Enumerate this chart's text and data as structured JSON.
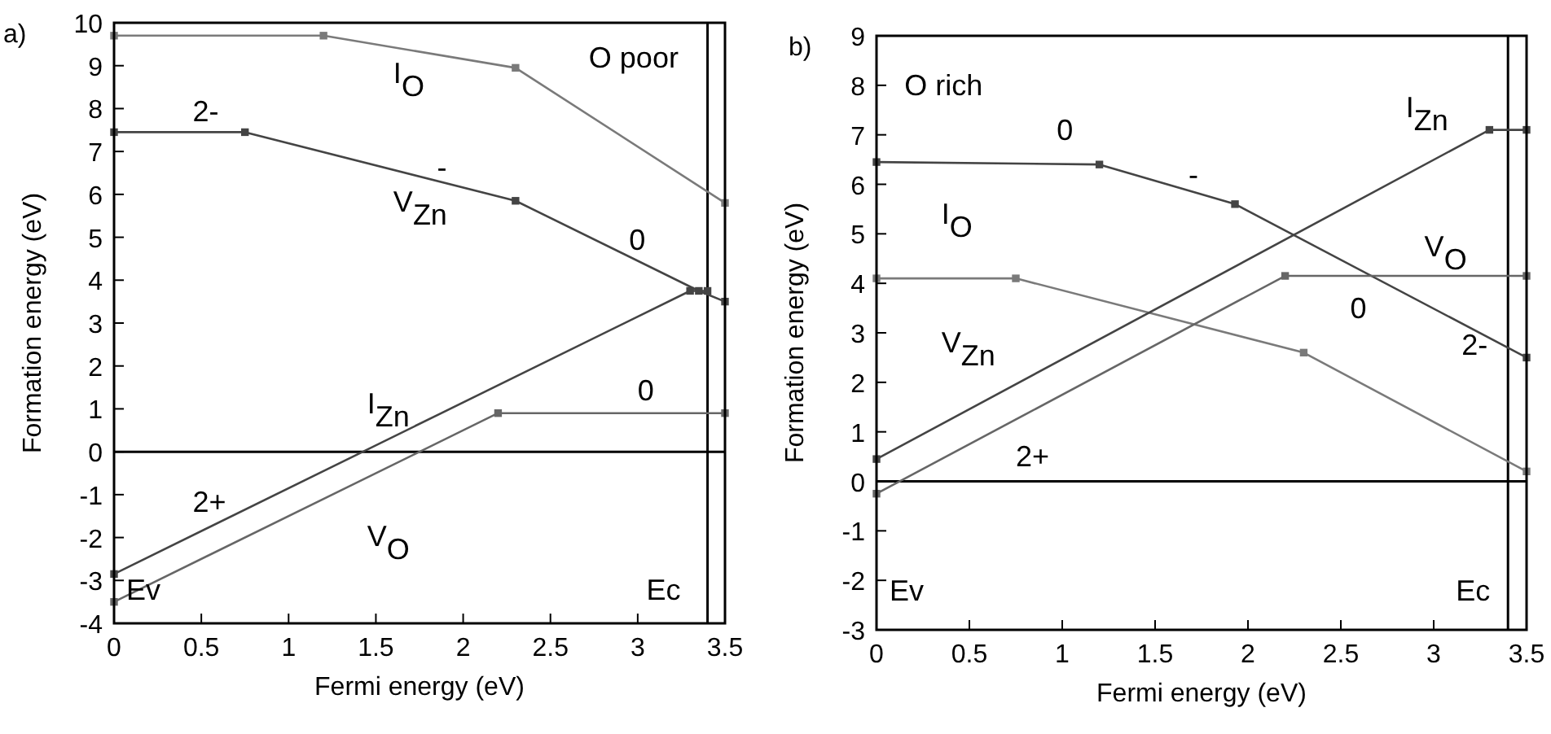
{
  "chart_data": [
    {
      "type": "line",
      "title": "a)",
      "xlabel": "Fermi energy (eV)",
      "ylabel": "Formation energy (eV)",
      "xlim": [
        0,
        3.5
      ],
      "ylim": [
        -4,
        10
      ],
      "xticks": [
        0,
        0.5,
        1,
        1.5,
        2,
        2.5,
        3,
        3.5
      ],
      "yticks": [
        -4,
        -3,
        -2,
        -1,
        0,
        1,
        2,
        3,
        4,
        5,
        6,
        7,
        8,
        9,
        10
      ],
      "marker": "square",
      "grid": false,
      "series": [
        {
          "color": "#7a7a7a",
          "x": [
            0,
            1.2,
            2.3,
            3.5
          ],
          "values": [
            9.7,
            9.7,
            8.95,
            5.8
          ]
        },
        {
          "color": "#444444",
          "x": [
            0,
            0.75,
            2.3,
            3.35,
            3.5
          ],
          "values": [
            7.45,
            7.45,
            5.85,
            3.75,
            3.5
          ]
        },
        {
          "color": "#444444",
          "x": [
            0,
            3.3,
            3.4
          ],
          "values": [
            -2.85,
            3.75,
            3.75
          ]
        },
        {
          "color": "#666666",
          "x": [
            0,
            2.2,
            3.5
          ],
          "values": [
            -3.5,
            0.9,
            0.9
          ]
        }
      ],
      "ref_lines": [
        {
          "axis": "y",
          "value": 0,
          "color": "#000000"
        },
        {
          "axis": "x",
          "value": 3.4,
          "color": "#000000"
        }
      ],
      "annotations": [
        "I$_{O}$",
        "2-",
        "V$_{Zn}$",
        "-",
        "0",
        "O poor",
        "0",
        "I$_{Zn}$",
        "2+",
        "V$_{O}$",
        "Ev",
        "Ec"
      ]
    },
    {
      "type": "line",
      "title": "b)",
      "xlabel": "Fermi energy (eV)",
      "ylabel": "Formation energy (eV)",
      "xlim": [
        0,
        3.5
      ],
      "ylim": [
        -3,
        9
      ],
      "xticks": [
        0,
        0.5,
        1,
        1.5,
        2,
        2.5,
        3,
        3.5
      ],
      "yticks": [
        -3,
        -2,
        -1,
        0,
        1,
        2,
        3,
        4,
        5,
        6,
        7,
        8,
        9
      ],
      "marker": "square",
      "grid": false,
      "series": [
        {
          "color": "#444444",
          "x": [
            0,
            1.2,
            1.93,
            3.5
          ],
          "values": [
            6.45,
            6.4,
            5.6,
            2.5
          ]
        },
        {
          "color": "#7a7a7a",
          "x": [
            0,
            0.75,
            2.3,
            3.5
          ],
          "values": [
            4.1,
            4.1,
            2.6,
            0.2
          ]
        },
        {
          "color": "#444444",
          "x": [
            0,
            3.3,
            3.5
          ],
          "values": [
            0.45,
            7.1,
            7.1
          ]
        },
        {
          "color": "#666666",
          "x": [
            0,
            2.2,
            3.5
          ],
          "values": [
            -0.25,
            4.15,
            4.15
          ]
        }
      ],
      "ref_lines": [
        {
          "axis": "y",
          "value": 0,
          "color": "#000000"
        },
        {
          "axis": "x",
          "value": 3.4,
          "color": "#000000"
        }
      ],
      "annotations": [
        "O rich",
        "0",
        "-",
        "I$_{O}$",
        "V$_{Zn}$",
        "I$_{Zn}$",
        "V$_{O}$",
        "0",
        "2-",
        "2+",
        "Ev",
        "Ec"
      ]
    }
  ]
}
